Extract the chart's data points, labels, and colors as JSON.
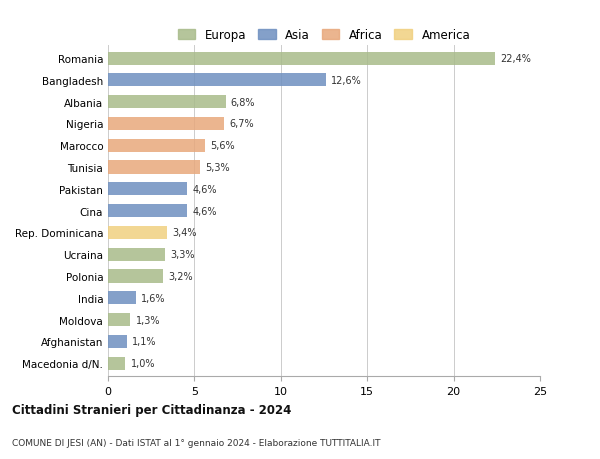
{
  "countries": [
    "Romania",
    "Bangladesh",
    "Albania",
    "Nigeria",
    "Marocco",
    "Tunisia",
    "Pakistan",
    "Cina",
    "Rep. Dominicana",
    "Ucraina",
    "Polonia",
    "India",
    "Moldova",
    "Afghanistan",
    "Macedonia d/N."
  ],
  "values": [
    22.4,
    12.6,
    6.8,
    6.7,
    5.6,
    5.3,
    4.6,
    4.6,
    3.4,
    3.3,
    3.2,
    1.6,
    1.3,
    1.1,
    1.0
  ],
  "labels": [
    "22,4%",
    "12,6%",
    "6,8%",
    "6,7%",
    "5,6%",
    "5,3%",
    "4,6%",
    "4,6%",
    "3,4%",
    "3,3%",
    "3,2%",
    "1,6%",
    "1,3%",
    "1,1%",
    "1,0%"
  ],
  "continents": [
    "Europa",
    "Asia",
    "Europa",
    "Africa",
    "Africa",
    "Africa",
    "Asia",
    "Asia",
    "America",
    "Europa",
    "Europa",
    "Asia",
    "Europa",
    "Asia",
    "Europa"
  ],
  "colors": {
    "Europa": "#a8bb8a",
    "Asia": "#6f90c0",
    "Africa": "#e8a87c",
    "America": "#f0d080"
  },
  "legend_order": [
    "Europa",
    "Asia",
    "Africa",
    "America"
  ],
  "xlim": [
    0,
    25
  ],
  "xticks": [
    0,
    5,
    10,
    15,
    20,
    25
  ],
  "title": "Cittadini Stranieri per Cittadinanza - 2024",
  "subtitle": "COMUNE DI JESI (AN) - Dati ISTAT al 1° gennaio 2024 - Elaborazione TUTTITALIA.IT",
  "bg_color": "#ffffff",
  "bar_height": 0.6
}
